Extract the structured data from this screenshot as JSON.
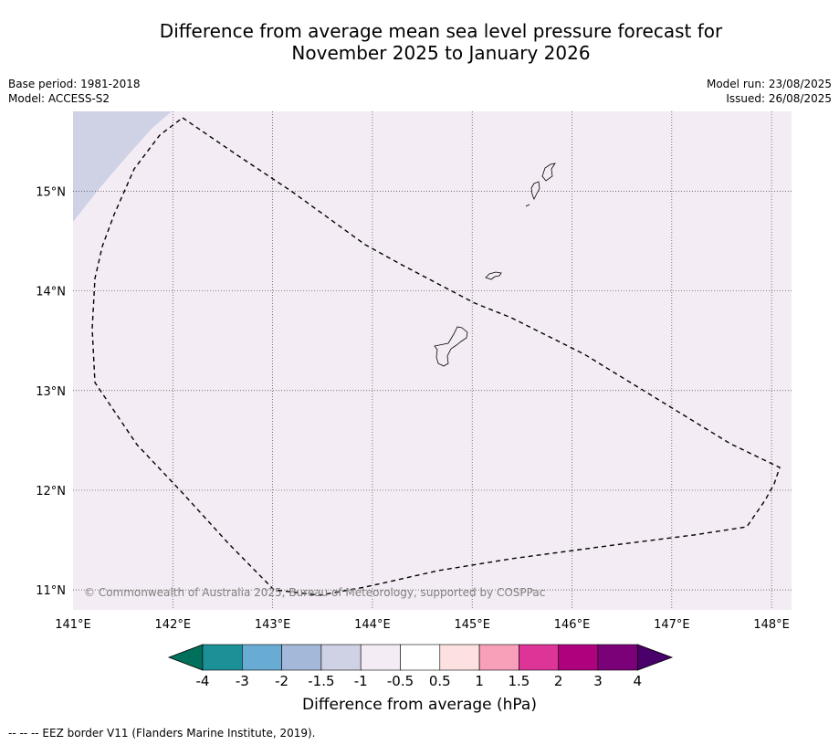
{
  "header": {
    "title_line1": "Difference from average mean sea level pressure forecast for",
    "title_line2": "November 2025 to January 2026",
    "base_period": "Base period: 1981-2018",
    "model": "Model: ACCESS-S2",
    "model_run": "Model run: 23/08/2025",
    "issued": "Issued: 26/08/2025"
  },
  "map": {
    "lon_range": [
      141,
      148.2
    ],
    "lat_range": [
      10.8,
      15.8
    ],
    "lon_labels": [
      "141°E",
      "142°E",
      "143°E",
      "144°E",
      "145°E",
      "146°E",
      "147°E",
      "148°E"
    ],
    "lat_labels": [
      "15°N",
      "14°N",
      "13°N",
      "12°N",
      "11°N"
    ],
    "background_color": "#f4ecf4",
    "anomaly_band_color": "#cfd1e5",
    "copyright": "© Commonwealth of Australia 2025, Bureau of Meteorology, supported by COSPPac"
  },
  "colorbar": {
    "tick_labels": [
      "-4",
      "-3",
      "-2",
      "-1.5",
      "-1",
      "-0.5",
      "0.5",
      "1",
      "1.5",
      "2",
      "3",
      "4"
    ],
    "colors": [
      "#1b9096",
      "#68acd3",
      "#a4b8d9",
      "#cfd1e5",
      "#f4ecf4",
      "#ffffff",
      "#fde0e0",
      "#f8a0ba",
      "#dd3497",
      "#ae017e",
      "#7a0177"
    ],
    "under_color": "#00705c",
    "over_color": "#49006a",
    "label": "Difference from average (hPa)"
  },
  "legend": {
    "eez_text": "--  --  -- EEZ border V11 (Flanders Marine Institute, 2019)."
  }
}
